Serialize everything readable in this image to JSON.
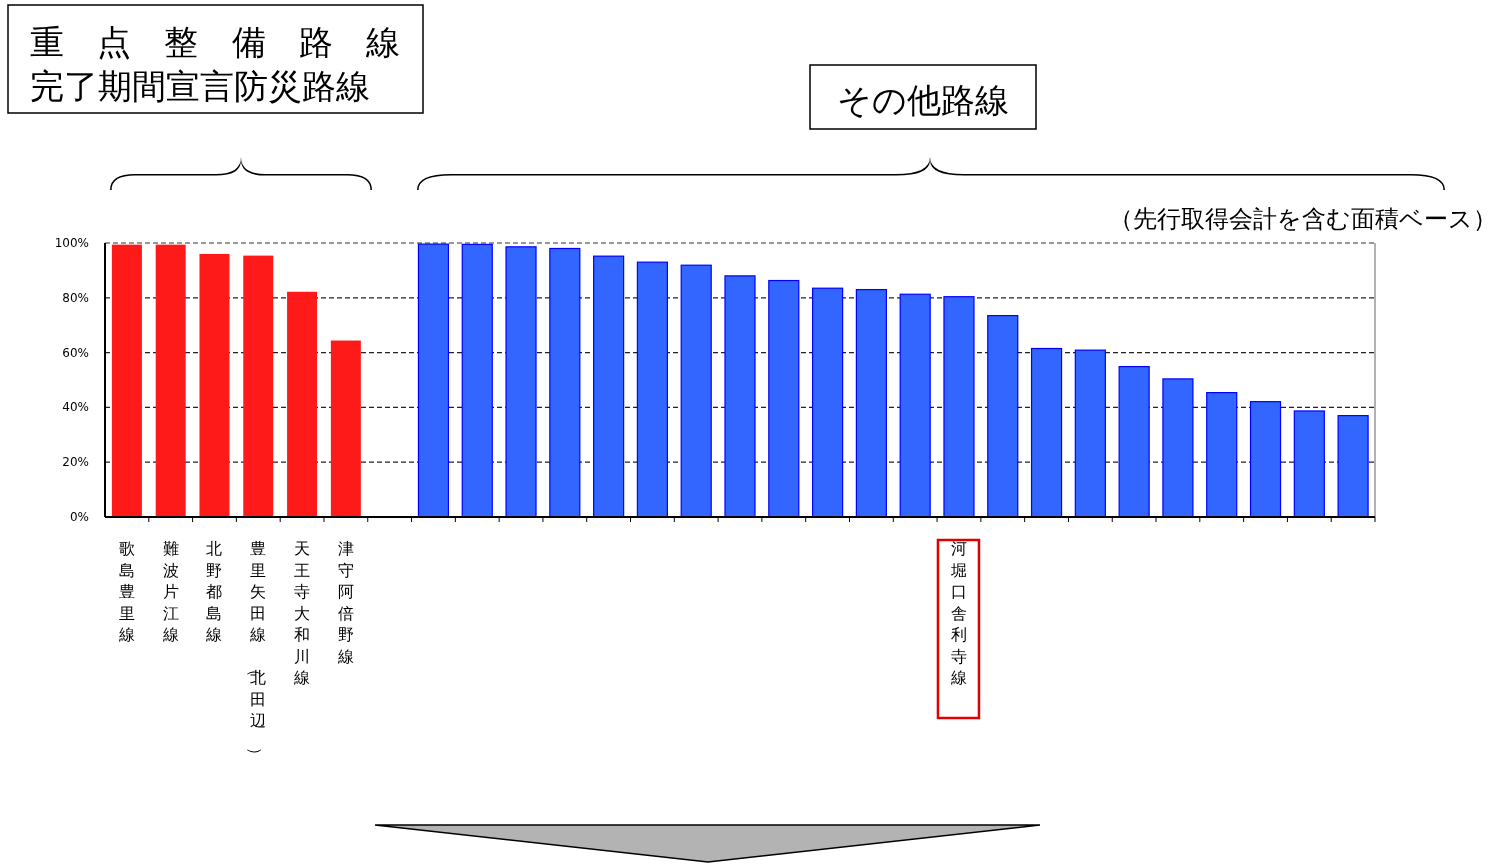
{
  "chart_data": {
    "type": "bar",
    "subtitle": "（先行取得会計を含む面積ベース）",
    "annotations": [
      "重点整備路線",
      "完了期間宣言防災路線",
      "その他路線"
    ],
    "categories": [
      "歌島豊里線",
      "難波片江線",
      "北野都島線",
      "豊里矢田線（北田辺）",
      "天王寺大和川線",
      "津守阿倍野線",
      null,
      null,
      null,
      null,
      null,
      null,
      null,
      null,
      null,
      null,
      null,
      null,
      null,
      "河堀口舎利寺線",
      null,
      null,
      null,
      null,
      null,
      null,
      null,
      null,
      null
    ],
    "values": [
      99.4,
      99.4,
      96.0,
      95.4,
      82.2,
      64.4,
      null,
      99.6,
      99.5,
      98.6,
      98.0,
      95.2,
      93.0,
      91.9,
      88.0,
      86.3,
      83.5,
      83.0,
      81.3,
      80.4,
      73.5,
      61.5,
      60.9,
      54.9,
      50.4,
      45.4,
      42.1,
      38.7,
      37.0
    ],
    "colors": [
      "#ff1a1a",
      "#ff1a1a",
      "#ff1a1a",
      "#ff1a1a",
      "#ff1a1a",
      "#ff1a1a",
      null,
      "#3366ff",
      "#3366ff",
      "#3366ff",
      "#3366ff",
      "#3366ff",
      "#3366ff",
      "#3366ff",
      "#3366ff",
      "#3366ff",
      "#3366ff",
      "#3366ff",
      "#3366ff",
      "#3366ff",
      "#3366ff",
      "#3366ff",
      "#3366ff",
      "#3366ff",
      "#3366ff",
      "#3366ff",
      "#3366ff",
      "#3366ff",
      "#3366ff"
    ],
    "ylim": [
      0,
      100
    ],
    "yticks": [
      {
        "value": 0,
        "label": "0%"
      },
      {
        "value": 20,
        "label": "20%"
      },
      {
        "value": 40,
        "label": "40%"
      },
      {
        "value": 60,
        "label": "60%"
      },
      {
        "value": 80,
        "label": "80%"
      },
      {
        "value": 100,
        "label": "100%"
      }
    ],
    "grid": "y"
  }
}
